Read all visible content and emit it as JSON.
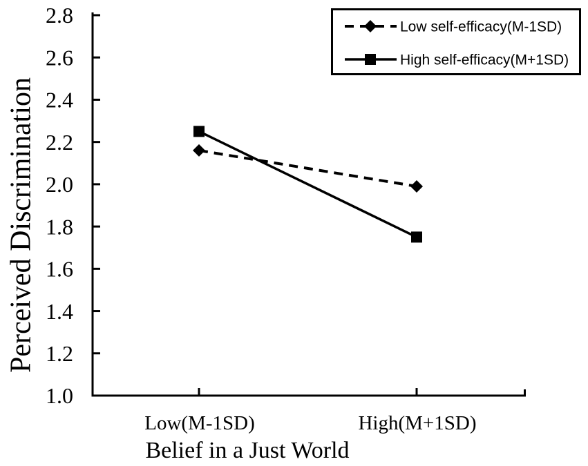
{
  "figure": {
    "background": "#ffffff",
    "ink_color": "#000000"
  },
  "chart_data": {
    "type": "line",
    "title": "",
    "xlabel": "Belief in a Just World",
    "ylabel": "Perceived Discrimination",
    "categories": [
      "Low(M-1SD)",
      "High(M+1SD)"
    ],
    "series": [
      {
        "name": "Low self-efficacy(M-1SD)",
        "values": [
          2.16,
          1.99
        ],
        "line_style": "dashed",
        "marker": "diamond",
        "color": "#000000"
      },
      {
        "name": "High self-efficacy(M+1SD)",
        "values": [
          2.25,
          1.75
        ],
        "line_style": "solid",
        "marker": "square",
        "color": "#000000"
      }
    ],
    "ylim": [
      1.0,
      2.8
    ],
    "y_ticks": [
      2.8,
      2.6,
      2.4,
      2.2,
      2.0,
      1.8,
      1.6,
      1.4,
      1.2,
      1.0
    ],
    "y_tick_labels": [
      "2.8",
      "2.6",
      "2.4",
      "2.2",
      "2.0",
      "1.8",
      "1.6",
      "1.4",
      "1.2",
      "1.0"
    ],
    "grid": false,
    "legend_position": "top-right"
  }
}
